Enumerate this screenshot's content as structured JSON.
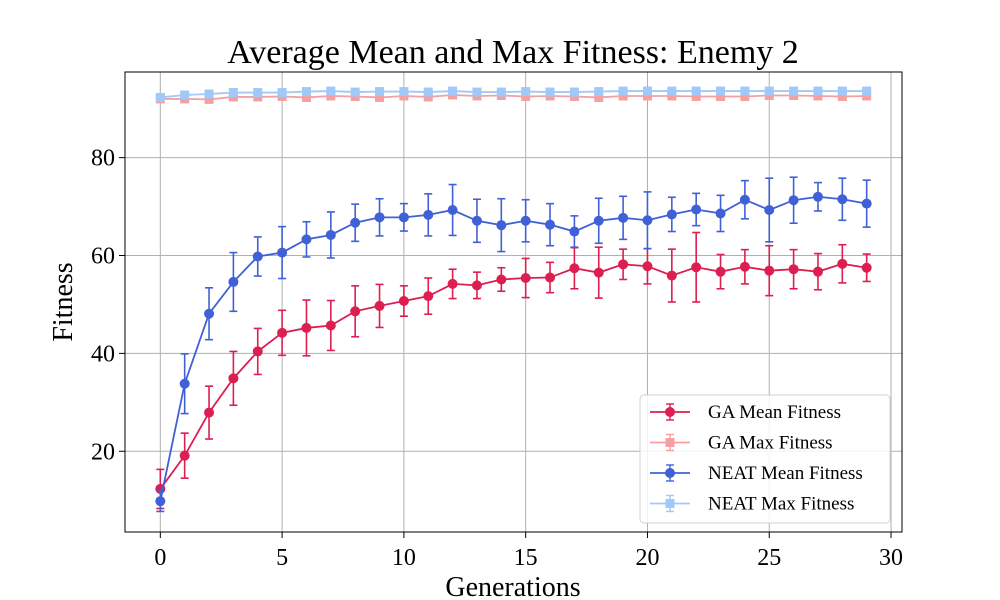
{
  "chart_data": {
    "type": "line",
    "title": "Average Mean and Max Fitness: Enemy 2",
    "xlabel": "Generations",
    "ylabel": "Fitness",
    "xlim": [
      -1.45,
      30.45
    ],
    "ylim": [
      3.5,
      97.5
    ],
    "xticks": [
      0,
      5,
      10,
      15,
      20,
      25,
      30
    ],
    "yticks": [
      20,
      40,
      60,
      80
    ],
    "grid": true,
    "legend_position": "lower-right",
    "x": [
      0,
      1,
      2,
      3,
      4,
      5,
      6,
      7,
      8,
      9,
      10,
      11,
      12,
      13,
      14,
      15,
      16,
      17,
      18,
      19,
      20,
      21,
      22,
      23,
      24,
      25,
      26,
      27,
      28,
      29
    ],
    "series": [
      {
        "name": "GA Mean Fitness",
        "color": "#dc1e50",
        "marker": "circle",
        "values": [
          12.3,
          19.1,
          27.9,
          34.9,
          40.4,
          44.2,
          45.2,
          45.7,
          48.6,
          49.7,
          50.7,
          51.7,
          54.2,
          53.9,
          55.1,
          55.4,
          55.5,
          57.4,
          56.5,
          58.2,
          57.8,
          55.9,
          57.6,
          56.7,
          57.7,
          56.9,
          57.2,
          56.7,
          58.3,
          57.5
        ],
        "errors": [
          4.0,
          4.6,
          5.4,
          5.5,
          4.7,
          4.6,
          5.7,
          5.1,
          5.2,
          4.4,
          3.1,
          3.7,
          3.0,
          2.7,
          2.4,
          4.0,
          3.1,
          4.2,
          5.2,
          3.1,
          3.6,
          5.4,
          7.1,
          3.5,
          3.5,
          5.1,
          4.0,
          3.7,
          3.9,
          2.8
        ]
      },
      {
        "name": "GA Max Fitness",
        "color": "#f4a0a0",
        "marker": "square",
        "values": [
          92.0,
          92.0,
          91.9,
          92.4,
          92.4,
          92.5,
          92.3,
          92.6,
          92.5,
          92.3,
          92.6,
          92.4,
          92.8,
          92.6,
          92.7,
          92.5,
          92.6,
          92.5,
          92.3,
          92.6,
          92.6,
          92.6,
          92.5,
          92.5,
          92.5,
          92.7,
          92.7,
          92.6,
          92.5,
          92.6
        ],
        "errors": [
          0.5,
          0.4,
          0.5,
          0.4,
          0.4,
          0.4,
          0.5,
          0.4,
          0.4,
          0.5,
          0.4,
          0.4,
          0.4,
          0.4,
          0.4,
          0.4,
          0.4,
          0.4,
          0.5,
          0.4,
          0.4,
          0.4,
          0.4,
          0.4,
          0.4,
          0.4,
          0.4,
          0.4,
          0.4,
          0.4
        ]
      },
      {
        "name": "NEAT Mean Fitness",
        "color": "#4060d8",
        "marker": "circle",
        "values": [
          9.8,
          33.8,
          48.1,
          54.6,
          59.8,
          60.6,
          63.3,
          64.2,
          66.7,
          67.8,
          67.8,
          68.3,
          69.3,
          67.1,
          66.2,
          67.1,
          66.3,
          64.9,
          67.1,
          67.7,
          67.2,
          68.4,
          69.4,
          68.6,
          71.4,
          69.3,
          71.3,
          72.0,
          71.5,
          70.6
        ],
        "errors": [
          2.1,
          6.1,
          5.3,
          6.0,
          4.0,
          5.3,
          3.6,
          4.7,
          3.8,
          3.8,
          2.8,
          4.3,
          5.2,
          4.4,
          5.4,
          4.3,
          4.3,
          3.2,
          4.6,
          4.4,
          5.8,
          3.5,
          3.3,
          3.7,
          3.9,
          6.5,
          4.7,
          2.9,
          4.3,
          4.8
        ]
      },
      {
        "name": "NEAT Max Fitness",
        "color": "#a0c8f8",
        "marker": "square",
        "values": [
          92.3,
          92.8,
          93.0,
          93.3,
          93.3,
          93.3,
          93.5,
          93.6,
          93.4,
          93.5,
          93.5,
          93.4,
          93.6,
          93.4,
          93.4,
          93.5,
          93.4,
          93.4,
          93.5,
          93.6,
          93.6,
          93.6,
          93.6,
          93.6,
          93.6,
          93.6,
          93.6,
          93.6,
          93.6,
          93.6
        ],
        "errors": [
          0.5,
          0.4,
          0.4,
          0.4,
          0.4,
          0.4,
          0.4,
          0.4,
          0.4,
          0.4,
          0.4,
          0.4,
          0.4,
          0.4,
          0.4,
          0.4,
          0.4,
          0.4,
          0.4,
          0.4,
          0.4,
          0.4,
          0.4,
          0.4,
          0.4,
          0.4,
          0.4,
          0.4,
          0.4,
          0.4
        ]
      }
    ]
  }
}
